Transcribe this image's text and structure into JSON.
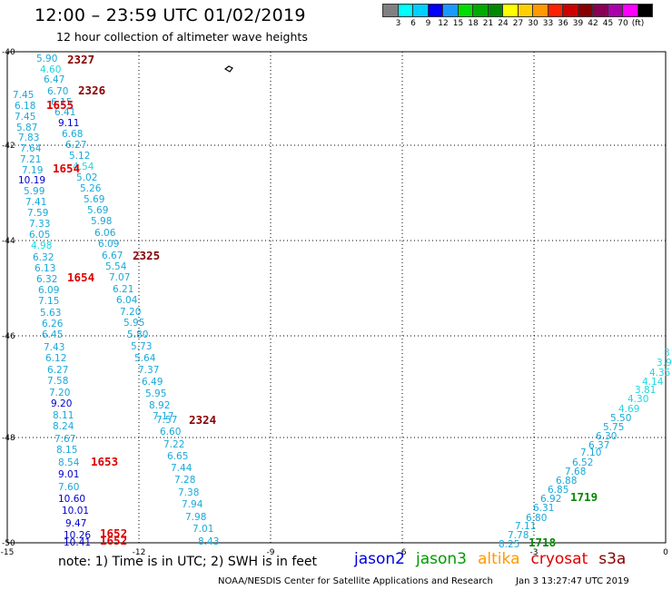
{
  "header": {
    "title": "12:00 – 23:59 UTC 01/02/2019",
    "subtitle": "12 hour collection of altimeter wave heights"
  },
  "legend": {
    "colors": [
      "#808080",
      "#00ffff",
      "#00d0ff",
      "#0000ff",
      "#1a9aff",
      "#00dd00",
      "#00aa00",
      "#008800",
      "#ffff00",
      "#ffd000",
      "#ff9900",
      "#ff2200",
      "#cc0000",
      "#880000",
      "#880055",
      "#aa00aa",
      "#ff00ff",
      "#000000"
    ],
    "labels": [
      "3",
      "6",
      "9",
      "12",
      "15",
      "18",
      "21",
      "24",
      "27",
      "30",
      "33",
      "36",
      "39",
      "42",
      "45",
      "70",
      "(ft)"
    ]
  },
  "axes": {
    "x_labels": [
      "-15",
      "-12",
      "-9",
      "-6",
      "-3",
      "0"
    ],
    "y_labels": [
      "-40",
      "-42",
      "-44",
      "-46",
      "-48",
      "-50"
    ]
  },
  "track_values": [
    "5.90",
    "4.60",
    "6.47",
    "6.70",
    "6.15",
    "6.41",
    "9.11",
    "6.68",
    "6.27",
    "5.12",
    "4.54",
    "5.02",
    "5.26",
    "5.69",
    "5.69",
    "5.98",
    "6.06",
    "6.09",
    "6.67",
    "5.54",
    "7.07",
    "6.21",
    "6.04",
    "7.20",
    "5.95",
    "5.80",
    "5.73",
    "5.64",
    "7.37",
    "6.49",
    "5.95",
    "8.92",
    "7.17",
    "7.57",
    "6.60",
    "7.22",
    "6.65",
    "7.44",
    "7.28",
    "7.38",
    "7.94",
    "7.98",
    "7.01",
    "8.43",
    "7.45",
    "6.18",
    "7.45",
    "5.87",
    "7.83",
    "7.64",
    "7.21",
    "7.19",
    "10.19",
    "5.99",
    "7.41",
    "7.59",
    "7.33",
    "6.05",
    "4.98",
    "6.32",
    "6.13",
    "6.32",
    "6.09",
    "7.15",
    "5.63",
    "6.26",
    "6.45",
    "7.43",
    "6.12",
    "6.27",
    "7.58",
    "7.20",
    "9.20",
    "8.11",
    "8.24",
    "7.67",
    "8.15",
    "8.54",
    "9.01",
    "7.60",
    "10.60",
    "10.01",
    "9.47",
    "10.26",
    "10.41",
    "3",
    "3.9",
    "4.35",
    "4.14",
    "3.81",
    "4.30",
    "4.69",
    "5.50",
    "5.75",
    "6.30",
    "6.37",
    "7.10",
    "6.52",
    "7.68",
    "6.88",
    "6.85",
    "6.92",
    "6.31",
    "6.80",
    "7.11",
    "7.78",
    "8.25"
  ],
  "time_labels": [
    "2327",
    "2326",
    "1655",
    "1654",
    "2325",
    "1654",
    "2324",
    "1653",
    "1652",
    "1652",
    "1719",
    "1718"
  ],
  "notes": {
    "note": "note:  1) Time is in UTC;  2) SWH is in feet",
    "satellites": [
      {
        "name": "jason2",
        "color": "#0000dd"
      },
      {
        "name": "jason3",
        "color": "#009900"
      },
      {
        "name": "altika",
        "color": "#ff9900"
      },
      {
        "name": "cryosat",
        "color": "#dd0000"
      },
      {
        "name": "s3a",
        "color": "#880000"
      }
    ]
  },
  "footer": {
    "agency": "NOAA/NESDIS Center for Satellite Applications and Research",
    "timestamp": "Jan  3 13:27:47 UTC 2019"
  }
}
